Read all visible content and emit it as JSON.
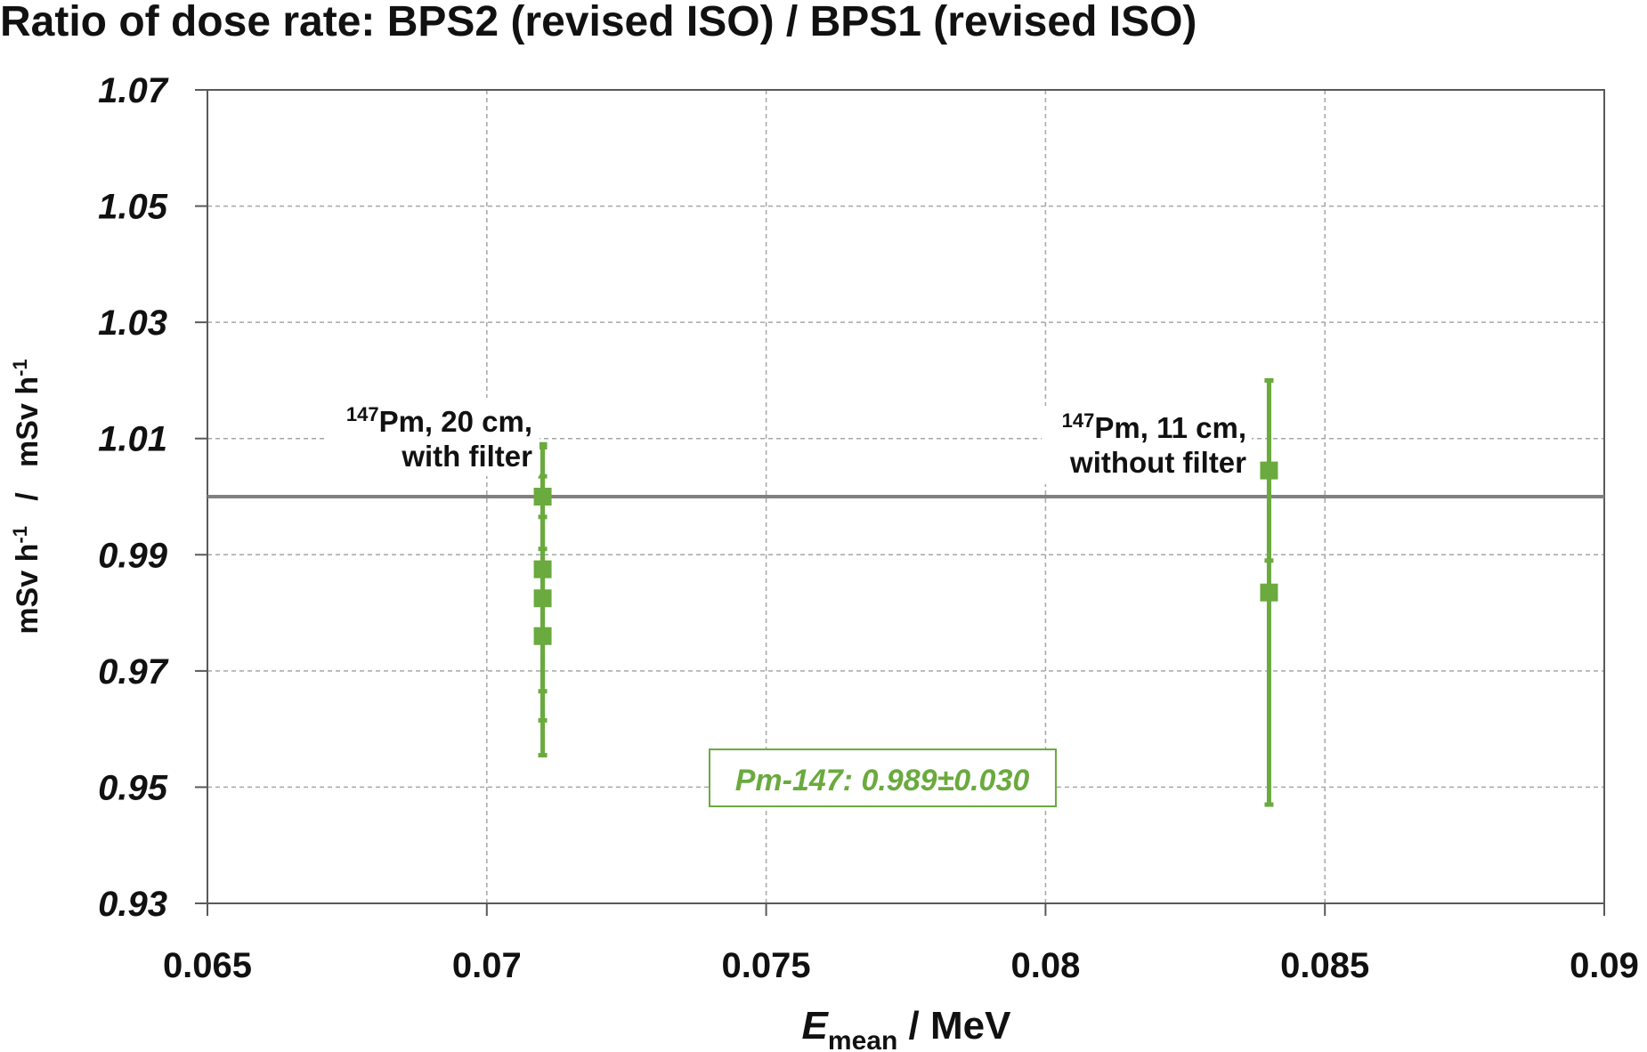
{
  "chart_data": {
    "type": "scatter",
    "title": "Ratio of dose rate: BPS2 (revised ISO) / BPS1 (revised ISO)",
    "xlabel": {
      "main": "E",
      "sub": "mean",
      "rest": " / MeV"
    },
    "ylabel": {
      "num_unit": "mSv h",
      "num_exp": "-1",
      "sep": "/",
      "den_unit": "mSv h",
      "den_exp": "-1"
    },
    "xlim": [
      0.065,
      0.09
    ],
    "ylim": [
      0.93,
      1.07
    ],
    "x_ticks": [
      0.065,
      0.07,
      0.075,
      0.08,
      0.085,
      0.09
    ],
    "x_tick_labels": [
      "0.065",
      "0.07",
      "0.075",
      "0.08",
      "0.085",
      "0.09"
    ],
    "y_ticks": [
      0.93,
      0.95,
      0.97,
      0.99,
      1.01,
      1.03,
      1.05,
      1.07
    ],
    "y_tick_labels": [
      "0.93",
      "0.95",
      "0.97",
      "0.99",
      "1.01",
      "1.03",
      "1.05",
      "1.07"
    ],
    "grid": true,
    "reference_line": {
      "y": 1.0,
      "color": "#808080"
    },
    "series_color": "#6aaa3e",
    "points": [
      {
        "x": 0.071,
        "y": 1.0,
        "err": 0.009
      },
      {
        "x": 0.071,
        "y": 0.9875,
        "err": 0.021
      },
      {
        "x": 0.071,
        "y": 0.9825,
        "err": 0.021
      },
      {
        "x": 0.071,
        "y": 0.976,
        "err": 0.0205
      },
      {
        "x": 0.084,
        "y": 1.0045,
        "err": 0.0155
      },
      {
        "x": 0.084,
        "y": 0.9835,
        "err": 0.0365
      }
    ],
    "annotations": [
      {
        "sup": "147",
        "line1": "Pm, 20 cm,",
        "line2": "with filter"
      },
      {
        "sup": "147",
        "line1": "Pm, 11 cm,",
        "line2": "without filter"
      }
    ],
    "summary_box": "Pm-147: 0.989±0.030"
  }
}
